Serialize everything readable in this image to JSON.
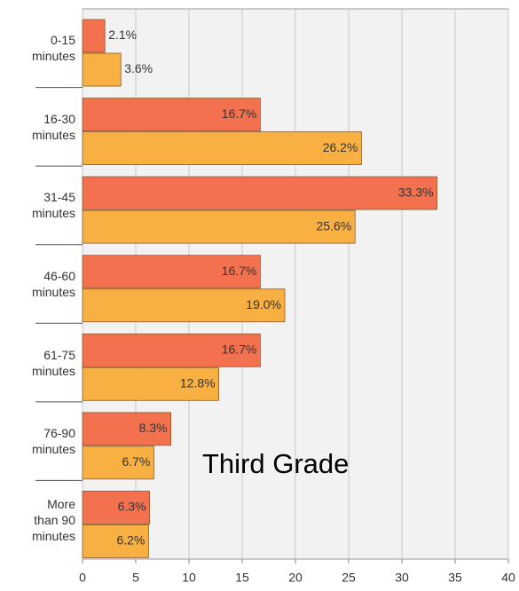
{
  "chart_data": {
    "type": "bar",
    "orientation": "horizontal",
    "categories": [
      "0-15\nminutes",
      "16-30\nminutes",
      "31-45\nminutes",
      "46-60\nminutes",
      "61-75\nminutes",
      "76-90\nminutes",
      "More\nthan 90\nminutes"
    ],
    "series": [
      {
        "color": "#f4714f",
        "values": [
          2.1,
          16.7,
          33.3,
          16.7,
          16.7,
          8.3,
          6.3
        ],
        "value_labels": [
          "2.1%",
          "16.7%",
          "33.3%",
          "16.7%",
          "16.7%",
          "8.3%",
          "6.3%"
        ]
      },
      {
        "color": "#f9b042",
        "values": [
          3.6,
          26.2,
          25.6,
          19.0,
          12.8,
          6.7,
          6.2
        ],
        "value_labels": [
          "3.6%",
          "26.2%",
          "25.6%",
          "19.0%",
          "12.8%",
          "6.7%",
          "6.2%"
        ]
      }
    ],
    "xlim": [
      0,
      40
    ],
    "xticks": [
      0,
      5,
      10,
      15,
      20,
      25,
      30,
      35,
      40
    ],
    "grid": true,
    "annotation": "Third Grade"
  }
}
